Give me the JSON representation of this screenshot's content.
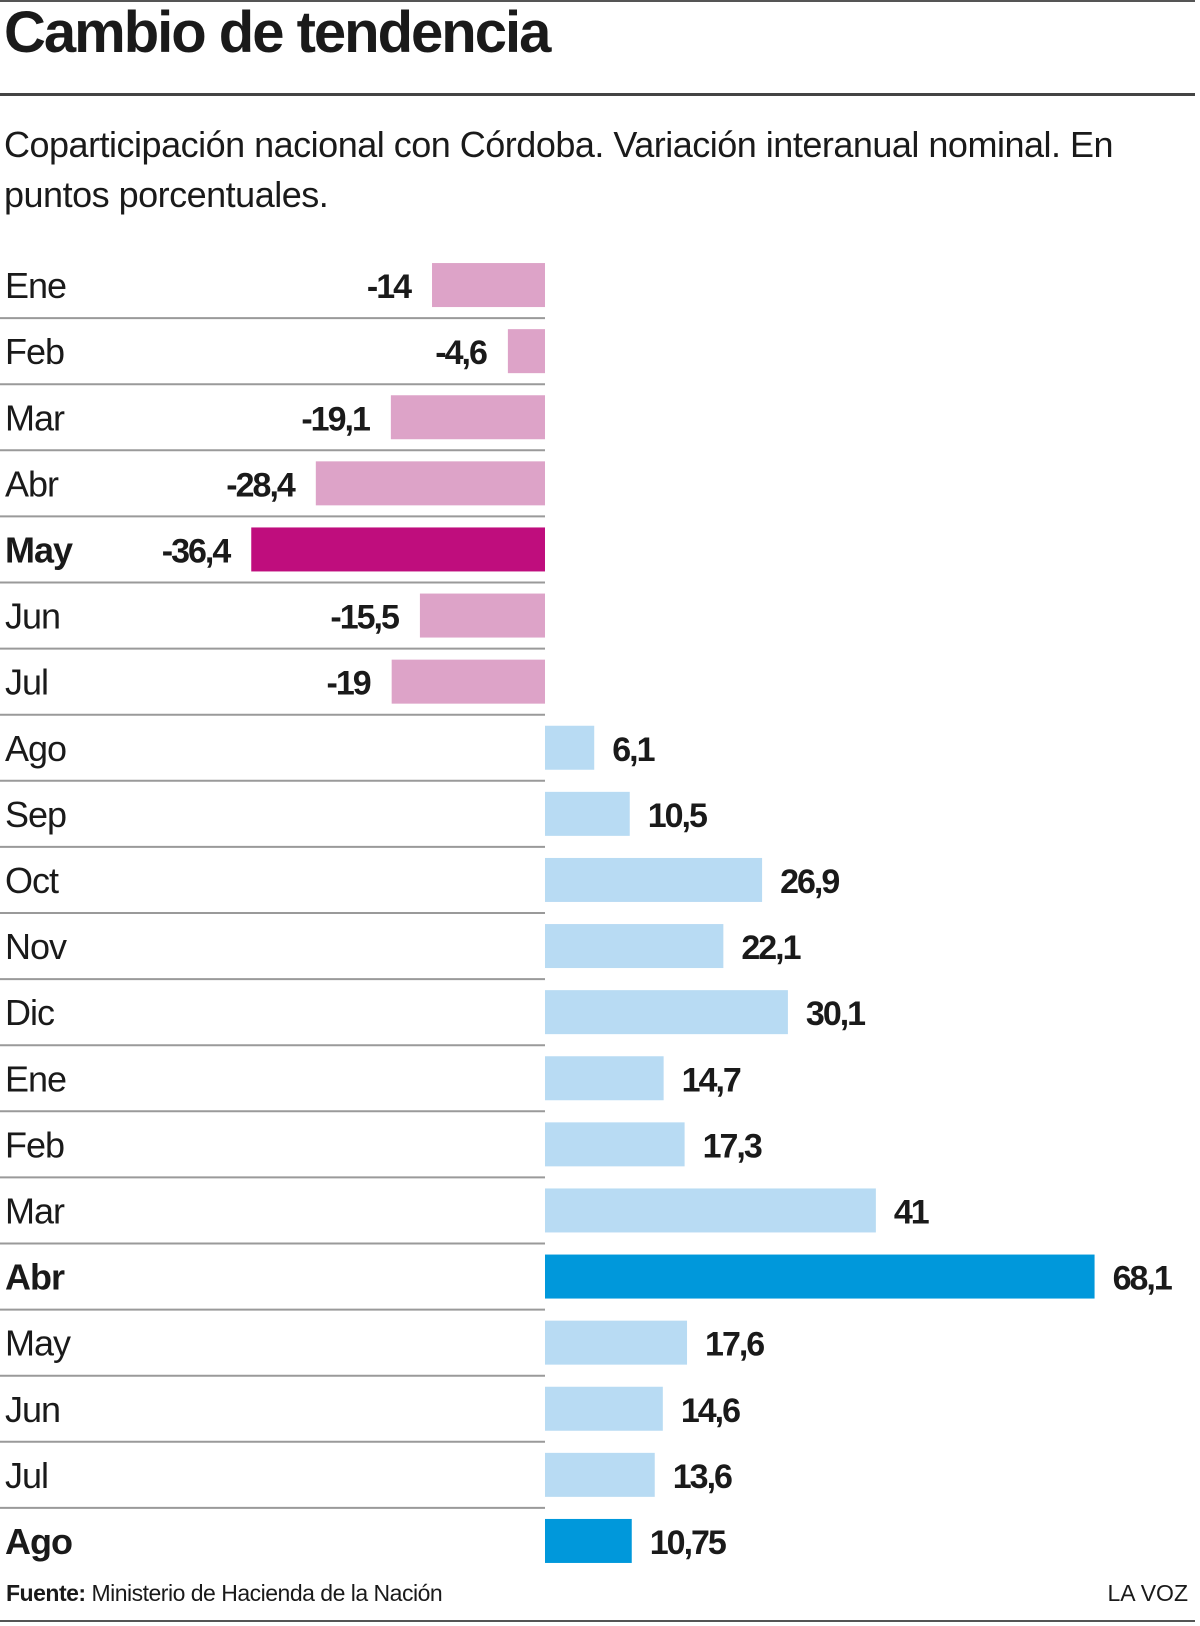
{
  "header": {
    "title": "Cambio de tendencia",
    "subtitle": "Coparticipación nacional con Córdoba. Variación interanual nominal. En puntos porcentuales."
  },
  "footer": {
    "source_label": "Fuente:",
    "source_text": "Ministerio de Hacienda de la Nación",
    "brand": "LA VOZ"
  },
  "colors": {
    "negative": "#dda3c8",
    "negative_highlight": "#bf0d7d",
    "positive": "#b8dbf3",
    "positive_highlight": "#0098db",
    "rule": "#9a9a9a"
  },
  "chart_data": {
    "type": "bar",
    "orientation": "horizontal",
    "categories": [
      "Ene",
      "Feb",
      "Mar",
      "Abr",
      "May",
      "Jun",
      "Jul",
      "Ago",
      "Sep",
      "Oct",
      "Nov",
      "Dic",
      "Ene",
      "Feb",
      "Mar",
      "Abr",
      "May",
      "Jun",
      "Jul",
      "Ago"
    ],
    "values": [
      -14,
      -4.6,
      -19.1,
      -28.4,
      -36.4,
      -15.5,
      -19,
      6.1,
      10.5,
      26.9,
      22.1,
      30.1,
      14.7,
      17.3,
      41,
      68.1,
      17.6,
      14.6,
      13.6,
      10.75
    ],
    "value_labels": [
      "-14",
      "-4,6",
      "-19,1",
      "-28,4",
      "-36,4",
      "-15,5",
      "-19",
      "6,1",
      "10,5",
      "26,9",
      "22,1",
      "30,1",
      "14,7",
      "17,3",
      "41",
      "68,1",
      "17,6",
      "14,6",
      "13,6",
      "10,75"
    ],
    "highlighted": [
      4,
      15,
      19
    ],
    "title": "Cambio de tendencia",
    "xlabel": "",
    "ylabel": "",
    "grid": false,
    "legend": false
  }
}
